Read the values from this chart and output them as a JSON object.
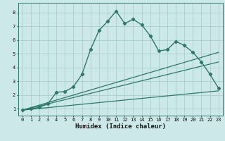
{
  "title": "",
  "xlabel": "Humidex (Indice chaleur)",
  "background_color": "#cce8e8",
  "plot_bg_color": "#cce8e8",
  "line_color": "#2d7a6a",
  "grid_color": "#aacfcf",
  "xlim": [
    -0.5,
    23.5
  ],
  "ylim": [
    0.5,
    8.7
  ],
  "xticks": [
    0,
    1,
    2,
    3,
    4,
    5,
    6,
    7,
    8,
    9,
    10,
    11,
    12,
    13,
    14,
    15,
    16,
    17,
    18,
    19,
    20,
    21,
    22,
    23
  ],
  "yticks": [
    1,
    2,
    3,
    4,
    5,
    6,
    7,
    8
  ],
  "main_series": {
    "x": [
      0,
      1,
      2,
      3,
      4,
      5,
      6,
      7,
      8,
      9,
      10,
      11,
      12,
      13,
      14,
      15,
      16,
      17,
      18,
      19,
      20,
      21,
      22,
      23
    ],
    "y": [
      0.9,
      1.0,
      1.1,
      1.35,
      2.2,
      2.25,
      2.6,
      3.5,
      5.3,
      6.7,
      7.35,
      8.1,
      7.2,
      7.5,
      7.1,
      6.3,
      5.2,
      5.3,
      5.9,
      5.6,
      5.1,
      4.4,
      3.5,
      2.5
    ]
  },
  "straight_lines": [
    {
      "x": [
        0,
        23
      ],
      "y": [
        0.9,
        5.1
      ]
    },
    {
      "x": [
        0,
        23
      ],
      "y": [
        0.9,
        4.4
      ]
    },
    {
      "x": [
        0,
        23
      ],
      "y": [
        0.9,
        2.3
      ]
    }
  ]
}
